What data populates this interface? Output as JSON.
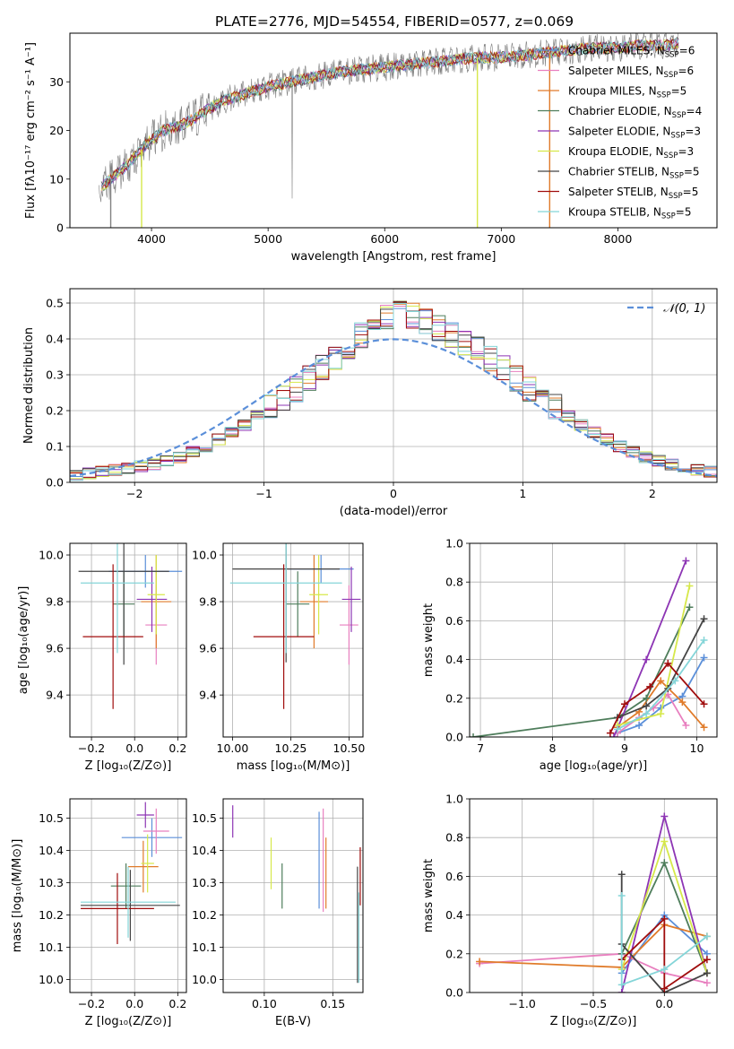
{
  "figure": {
    "title": "PLATE=2776, MJD=54554, FIBERID=0577, z=0.069"
  },
  "colors": {
    "Chabrier MILES": "#5b8fd9",
    "Salpeter MILES": "#e87fbf",
    "Kroupa MILES": "#e07b2a",
    "Chabrier ELODIE": "#4e7d5b",
    "Salpeter ELODIE": "#8d35b4",
    "Kroupa ELODIE": "#d6e84a",
    "Chabrier STELIB": "#444444",
    "Salpeter STELIB": "#a00d0d",
    "Kroupa STELIB": "#84d5d8"
  },
  "chart_data": [
    {
      "id": "spectrum",
      "type": "line",
      "xlabel": "wavelength [Angstrom, rest frame]",
      "ylabel": "Flux [fλ10⁻¹⁷ erg cm⁻² s⁻¹ A⁻¹]",
      "xlim": [
        3300,
        8850
      ],
      "ylim": [
        0,
        40
      ],
      "xticks": [
        4000,
        5000,
        6000,
        7000,
        8000
      ],
      "yticks": [
        0,
        10,
        20,
        30
      ],
      "grid": false,
      "legend_position": "lower-right",
      "continuum": {
        "x": [
          3550,
          3650,
          3800,
          3950,
          4100,
          4250,
          4400,
          4600,
          4800,
          5000,
          5200,
          5400,
          5600,
          5800,
          6000,
          6200,
          6400,
          6600,
          6800,
          7000,
          7200,
          7400,
          7600,
          7800,
          8000,
          8200,
          8400,
          8520
        ],
        "y": [
          8,
          10,
          13,
          17,
          20,
          21,
          23,
          26,
          27.5,
          29,
          30,
          31,
          32,
          32.5,
          33,
          33.5,
          34,
          34.5,
          35,
          35,
          35.5,
          36,
          36.5,
          37,
          37,
          37.5,
          37.5,
          38
        ]
      },
      "series": [
        {
          "name": "Chabrier MILES",
          "nssp": "6"
        },
        {
          "name": "Salpeter MILES",
          "nssp": "6"
        },
        {
          "name": "Kroupa MILES",
          "nssp": "5"
        },
        {
          "name": "Chabrier ELODIE",
          "nssp": "4"
        },
        {
          "name": "Salpeter ELODIE",
          "nssp": "3"
        },
        {
          "name": "Kroupa ELODIE",
          "nssp": "3"
        },
        {
          "name": "Chabrier STELIB",
          "nssp": "5"
        },
        {
          "name": "Salpeter STELIB",
          "nssp": "5"
        },
        {
          "name": "Kroupa STELIB",
          "nssp": "5"
        }
      ]
    },
    {
      "id": "residuals",
      "type": "histogram",
      "xlabel": "(data-model)/error",
      "ylabel": "Normed distribution",
      "xlim": [
        -2.5,
        2.5
      ],
      "ylim": [
        0,
        0.54
      ],
      "xticks": [
        -2,
        -1,
        0,
        1,
        2
      ],
      "yticks": [
        0.0,
        0.1,
        0.2,
        0.3,
        0.4,
        0.5
      ],
      "grid": true,
      "legend": [
        "𝒩(0, 1)"
      ],
      "legend_position": "top-right",
      "bin_width": 0.1,
      "bins_left": -2.5,
      "envelope": [
        0.02,
        0.025,
        0.03,
        0.035,
        0.04,
        0.045,
        0.05,
        0.06,
        0.07,
        0.085,
        0.1,
        0.12,
        0.14,
        0.16,
        0.185,
        0.21,
        0.235,
        0.26,
        0.29,
        0.32,
        0.35,
        0.38,
        0.41,
        0.44,
        0.46,
        0.47,
        0.465,
        0.45,
        0.43,
        0.41,
        0.39,
        0.37,
        0.345,
        0.32,
        0.29,
        0.26,
        0.235,
        0.21,
        0.185,
        0.16,
        0.14,
        0.12,
        0.1,
        0.085,
        0.07,
        0.06,
        0.05,
        0.04,
        0.035,
        0.03
      ],
      "normal_curve": "N(0,1)"
    },
    {
      "id": "age_vs_Z",
      "type": "errorbar",
      "xlabel": "Z [log₁₀(Z/Z⊙)]",
      "ylabel": "age  [log₁₀(age/yr)]",
      "xlim": [
        -0.3,
        0.24
      ],
      "ylim": [
        9.22,
        10.05
      ],
      "xticks": [
        -0.2,
        0.0,
        0.2
      ],
      "yticks": [
        9.4,
        9.6,
        9.8,
        10.0
      ],
      "points": [
        {
          "s": "Chabrier MILES",
          "x": 0.05,
          "y": 9.93,
          "xe": 0.17,
          "ye": 0.07
        },
        {
          "s": "Salpeter MILES",
          "x": 0.1,
          "y": 9.7,
          "xe": 0.05,
          "ye": 0.17
        },
        {
          "s": "Kroupa MILES",
          "x": 0.1,
          "y": 9.8,
          "xe": 0.07,
          "ye": 0.2
        },
        {
          "s": "Chabrier ELODIE",
          "x": -0.05,
          "y": 9.79,
          "xe": 0.05,
          "ye": 0.14
        },
        {
          "s": "Salpeter ELODIE",
          "x": 0.08,
          "y": 9.81,
          "xe": 0.07,
          "ye": 0.14
        },
        {
          "s": "Kroupa ELODIE",
          "x": 0.1,
          "y": 9.83,
          "xe": 0.04,
          "ye": 0.17
        },
        {
          "s": "Chabrier STELIB",
          "x": -0.05,
          "y": 9.93,
          "xe": 0.21,
          "ye": 0.4
        },
        {
          "s": "Salpeter STELIB",
          "x": -0.1,
          "y": 9.65,
          "xe": 0.14,
          "ye": 0.31
        },
        {
          "s": "Kroupa STELIB",
          "x": -0.08,
          "y": 9.88,
          "xe": 0.17,
          "ye": 0.3
        }
      ]
    },
    {
      "id": "age_vs_mass",
      "type": "errorbar",
      "xlabel": "mass [log₁₀(M/M⊙)]",
      "ylabel": "",
      "xlim": [
        9.96,
        10.56
      ],
      "ylim": [
        9.22,
        10.05
      ],
      "xticks": [
        10.0,
        10.25,
        10.5
      ],
      "yticks": [
        9.4,
        9.6,
        9.8,
        10.0
      ],
      "points": [
        {
          "s": "Chabrier MILES",
          "x": 10.38,
          "y": 9.94,
          "xe": 0.14,
          "ye": 0.06
        },
        {
          "s": "Salpeter MILES",
          "x": 10.5,
          "y": 9.7,
          "xe": 0.04,
          "ye": 0.17
        },
        {
          "s": "Kroupa MILES",
          "x": 10.35,
          "y": 9.8,
          "xe": 0.06,
          "ye": 0.2
        },
        {
          "s": "Chabrier ELODIE",
          "x": 10.28,
          "y": 9.79,
          "xe": 0.05,
          "ye": 0.14
        },
        {
          "s": "Salpeter ELODIE",
          "x": 10.51,
          "y": 9.81,
          "xe": 0.04,
          "ye": 0.14
        },
        {
          "s": "Kroupa ELODIE",
          "x": 10.37,
          "y": 9.83,
          "xe": 0.04,
          "ye": 0.17
        },
        {
          "s": "Chabrier STELIB",
          "x": 10.23,
          "y": 9.94,
          "xe": 0.23,
          "ye": 0.4
        },
        {
          "s": "Salpeter STELIB",
          "x": 10.22,
          "y": 9.65,
          "xe": 0.13,
          "ye": 0.31
        },
        {
          "s": "Kroupa STELIB",
          "x": 10.23,
          "y": 9.88,
          "xe": 0.24,
          "ye": 0.3
        }
      ]
    },
    {
      "id": "weight_vs_age",
      "type": "line",
      "xlabel": "age  [log₁₀(age/yr)]",
      "ylabel": "mass weight",
      "xlim": [
        6.85,
        10.28
      ],
      "ylim": [
        0.0,
        1.0
      ],
      "xticks": [
        7,
        8,
        9,
        10
      ],
      "yticks": [
        0.0,
        0.2,
        0.4,
        0.6,
        0.8,
        1.0
      ],
      "grid": true,
      "series": [
        {
          "name": "Chabrier MILES",
          "x": [
            8.9,
            9.2,
            9.5,
            9.8,
            10.1
          ],
          "y": [
            0.02,
            0.06,
            0.15,
            0.21,
            0.41
          ]
        },
        {
          "name": "Salpeter MILES",
          "x": [
            8.9,
            9.2,
            9.4,
            9.6,
            9.85
          ],
          "y": [
            0.02,
            0.1,
            0.15,
            0.22,
            0.06
          ]
        },
        {
          "name": "Kroupa MILES",
          "x": [
            8.9,
            9.2,
            9.5,
            9.8,
            10.1
          ],
          "y": [
            0.05,
            0.13,
            0.29,
            0.18,
            0.05
          ]
        },
        {
          "name": "Chabrier ELODIE",
          "x": [
            6.9,
            8.9,
            9.3,
            9.9
          ],
          "y": [
            0.0,
            0.1,
            0.2,
            0.67
          ]
        },
        {
          "name": "Salpeter ELODIE",
          "x": [
            8.85,
            9.3,
            9.85
          ],
          "y": [
            0.0,
            0.4,
            0.91
          ]
        },
        {
          "name": "Kroupa ELODIE",
          "x": [
            8.9,
            9.5,
            9.9
          ],
          "y": [
            0.06,
            0.12,
            0.78
          ]
        },
        {
          "name": "Chabrier STELIB",
          "x": [
            8.9,
            9.3,
            9.6,
            10.1
          ],
          "y": [
            0.1,
            0.16,
            0.25,
            0.61
          ]
        },
        {
          "name": "Salpeter STELIB",
          "x": [
            8.8,
            9.0,
            9.35,
            9.6,
            10.1
          ],
          "y": [
            0.02,
            0.17,
            0.26,
            0.38,
            0.17
          ]
        },
        {
          "name": "Kroupa STELIB",
          "x": [
            8.9,
            9.3,
            9.7,
            10.1
          ],
          "y": [
            0.04,
            0.12,
            0.29,
            0.5
          ]
        }
      ]
    },
    {
      "id": "mass_vs_Z",
      "type": "errorbar",
      "xlabel": "Z [log₁₀(Z/Z⊙)]",
      "ylabel": "mass [log₁₀(M/M⊙)]",
      "xlim": [
        -0.3,
        0.24
      ],
      "ylim": [
        9.96,
        10.56
      ],
      "xticks": [
        -0.2,
        0.0,
        0.2
      ],
      "yticks": [
        10.0,
        10.1,
        10.2,
        10.3,
        10.4,
        10.5
      ],
      "points": [
        {
          "s": "Chabrier MILES",
          "x": 0.08,
          "y": 10.44,
          "xe": 0.14,
          "ye": 0.06
        },
        {
          "s": "Salpeter MILES",
          "x": 0.1,
          "y": 10.46,
          "xe": 0.06,
          "ye": 0.07
        },
        {
          "s": "Kroupa MILES",
          "x": 0.04,
          "y": 10.35,
          "xe": 0.07,
          "ye": 0.08
        },
        {
          "s": "Chabrier ELODIE",
          "x": -0.04,
          "y": 10.29,
          "xe": 0.07,
          "ye": 0.07
        },
        {
          "s": "Salpeter ELODIE",
          "x": 0.05,
          "y": 10.51,
          "xe": 0.04,
          "ye": 0.04
        },
        {
          "s": "Kroupa ELODIE",
          "x": 0.06,
          "y": 10.36,
          "xe": 0.03,
          "ye": 0.09
        },
        {
          "s": "Chabrier STELIB",
          "x": -0.02,
          "y": 10.23,
          "xe": 0.23,
          "ye": 0.11
        },
        {
          "s": "Salpeter STELIB",
          "x": -0.08,
          "y": 10.22,
          "xe": 0.17,
          "ye": 0.11
        },
        {
          "s": "Kroupa STELIB",
          "x": -0.03,
          "y": 10.24,
          "xe": 0.22,
          "ye": 0.11
        }
      ]
    },
    {
      "id": "mass_vs_ebv",
      "type": "errorbar",
      "xlabel": "E(B-V)",
      "ylabel": "",
      "xlim": [
        0.07,
        0.172
      ],
      "ylim": [
        9.96,
        10.56
      ],
      "xticks": [
        0.1,
        0.15
      ],
      "yticks": [
        10.0,
        10.1,
        10.2,
        10.3,
        10.4,
        10.5
      ],
      "points": [
        {
          "s": "Chabrier MILES",
          "x": 0.14,
          "y": 10.37,
          "xe": 0,
          "ye": 0.15
        },
        {
          "s": "Salpeter MILES",
          "x": 0.143,
          "y": 10.37,
          "xe": 0,
          "ye": 0.16
        },
        {
          "s": "Kroupa MILES",
          "x": 0.145,
          "y": 10.33,
          "xe": 0,
          "ye": 0.11
        },
        {
          "s": "Chabrier ELODIE",
          "x": 0.113,
          "y": 10.29,
          "xe": 0,
          "ye": 0.07
        },
        {
          "s": "Salpeter ELODIE",
          "x": 0.077,
          "y": 10.49,
          "xe": 0,
          "ye": 0.05
        },
        {
          "s": "Kroupa ELODIE",
          "x": 0.105,
          "y": 10.36,
          "xe": 0,
          "ye": 0.08
        },
        {
          "s": "Chabrier STELIB",
          "x": 0.168,
          "y": 10.17,
          "xe": 0,
          "ye": 0.18
        },
        {
          "s": "Salpeter STELIB",
          "x": 0.17,
          "y": 10.32,
          "xe": 0,
          "ye": 0.09
        },
        {
          "s": "Kroupa STELIB",
          "x": 0.169,
          "y": 10.13,
          "xe": 0,
          "ye": 0.14
        }
      ]
    },
    {
      "id": "weight_vs_Z",
      "type": "line",
      "xlabel": "Z [log₁₀(Z/Z⊙)]",
      "ylabel": "mass weight",
      "xlim": [
        -1.37,
        0.37
      ],
      "ylim": [
        0.0,
        1.0
      ],
      "xticks": [
        -1.0,
        -0.5,
        0.0
      ],
      "yticks": [
        0.0,
        0.2,
        0.4,
        0.6,
        0.8,
        1.0
      ],
      "grid": true,
      "series": [
        {
          "name": "Chabrier MILES",
          "x": [
            -0.3,
            0.0,
            0.3
          ],
          "y": [
            0.1,
            0.4,
            0.2
          ]
        },
        {
          "name": "Salpeter MILES",
          "x": [
            -1.3,
            -0.3,
            0.0,
            0.3
          ],
          "y": [
            0.15,
            0.2,
            0.1,
            0.05
          ]
        },
        {
          "name": "Kroupa MILES",
          "x": [
            -1.3,
            -0.3,
            0.0,
            0.3
          ],
          "y": [
            0.16,
            0.13,
            0.35,
            0.29
          ]
        },
        {
          "name": "Chabrier ELODIE",
          "x": [
            -0.3,
            0.0,
            0.3
          ],
          "y": [
            0.2,
            0.67,
            0.1
          ]
        },
        {
          "name": "Salpeter ELODIE",
          "x": [
            -0.3,
            0.0,
            0.3
          ],
          "y": [
            0.0,
            0.91,
            0.1
          ]
        },
        {
          "name": "Kroupa ELODIE",
          "x": [
            -0.3,
            0.0,
            0.3
          ],
          "y": [
            0.12,
            0.78,
            0.1
          ]
        },
        {
          "name": "Chabrier STELIB",
          "x": [
            -0.3,
            -0.3,
            0.0,
            0.3
          ],
          "y": [
            0.61,
            0.25,
            0.0,
            0.1
          ]
        },
        {
          "name": "Salpeter STELIB",
          "x": [
            -0.3,
            0.0,
            0.0,
            0.3
          ],
          "y": [
            0.17,
            0.38,
            0.02,
            0.17
          ]
        },
        {
          "name": "Kroupa STELIB",
          "x": [
            -0.3,
            -0.3,
            0.0,
            0.3
          ],
          "y": [
            0.5,
            0.04,
            0.12,
            0.29
          ]
        }
      ]
    }
  ]
}
